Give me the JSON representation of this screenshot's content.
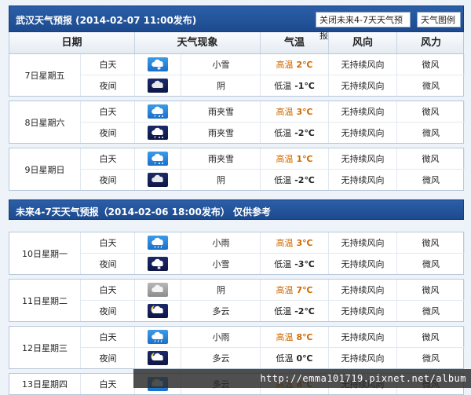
{
  "header": {
    "title": "武汉天气预报 (2014-02-07  11:00发布)",
    "close_button": "关闭未来4-7天天气预报",
    "legend_button": "天气图例"
  },
  "columns": [
    "日期",
    "天气现象",
    "气温",
    "风向",
    "风力"
  ],
  "section2_title": "未来4-7天天气预报（2014-02-06 18:00发布）    仅供参考",
  "days": [
    {
      "date": "7日星期五",
      "periods": [
        {
          "label": "白天",
          "icon": "snow-day-icon",
          "weather": "小雪",
          "temp_label": "高温",
          "temp": "2℃"
        },
        {
          "label": "夜间",
          "icon": "overcast-night-icon",
          "weather": "阴",
          "temp_label": "低温",
          "temp": "-1℃"
        }
      ]
    },
    {
      "date": "8日星期六",
      "periods": [
        {
          "label": "白天",
          "icon": "sleet-day-icon",
          "weather": "雨夹雪",
          "temp_label": "高温",
          "temp": "3℃"
        },
        {
          "label": "夜间",
          "icon": "sleet-night-icon",
          "weather": "雨夹雪",
          "temp_label": "低温",
          "temp": "-2℃"
        }
      ]
    },
    {
      "date": "9日星期日",
      "periods": [
        {
          "label": "白天",
          "icon": "sleet-day-icon",
          "weather": "雨夹雪",
          "temp_label": "高温",
          "temp": "1℃"
        },
        {
          "label": "夜间",
          "icon": "overcast-night-icon",
          "weather": "阴",
          "temp_label": "低温",
          "temp": "-2℃"
        }
      ]
    },
    {
      "date": "10日星期一",
      "periods": [
        {
          "label": "白天",
          "icon": "rain-day-icon",
          "weather": "小雨",
          "temp_label": "高温",
          "temp": "3℃"
        },
        {
          "label": "夜间",
          "icon": "snow-night-icon",
          "weather": "小雪",
          "temp_label": "低温",
          "temp": "-3℃"
        }
      ]
    },
    {
      "date": "11日星期二",
      "periods": [
        {
          "label": "白天",
          "icon": "overcast-day-icon",
          "weather": "阴",
          "temp_label": "高温",
          "temp": "7℃"
        },
        {
          "label": "夜间",
          "icon": "cloudy-night-icon",
          "weather": "多云",
          "temp_label": "低温",
          "temp": "-2℃"
        }
      ]
    },
    {
      "date": "12日星期三",
      "periods": [
        {
          "label": "白天",
          "icon": "rain-day-icon",
          "weather": "小雨",
          "temp_label": "高温",
          "temp": "8℃"
        },
        {
          "label": "夜间",
          "icon": "cloudy-night-icon",
          "weather": "多云",
          "temp_label": "低温",
          "temp": "0℃"
        }
      ]
    },
    {
      "date": "13日星期四",
      "periods": [
        {
          "label": "白天",
          "icon": "cloudy-day-icon",
          "weather": "多云",
          "temp_label": "高温",
          "temp": "8℃"
        }
      ]
    }
  ],
  "wind_direction": "无持续风向",
  "wind_force": "微风",
  "watermark": "http://emma101719.pixnet.net/album",
  "colors": {
    "header": "#1d4a8e",
    "high_temp": "#d06a00",
    "background": "#eef3f9"
  }
}
